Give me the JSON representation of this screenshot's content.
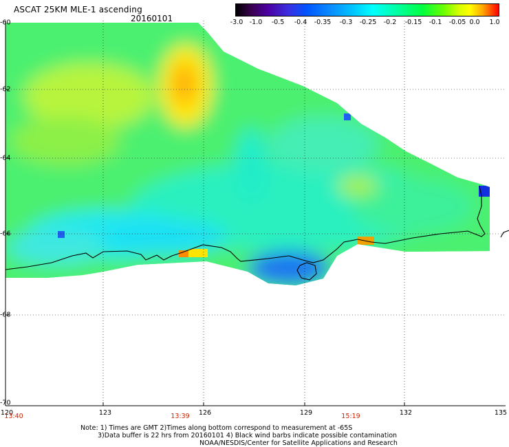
{
  "header": {
    "title": "ASCAT 25KM MLE-1 ascending",
    "date": "20160101"
  },
  "colorbar": {
    "ticks": [
      "-3.0",
      "-1.0",
      "-0.5",
      "-0.4",
      "-0.35",
      "-0.3",
      "-0.25",
      "-0.2",
      "-0.15",
      "-0.1",
      "-0.05",
      "0.0",
      "1.0"
    ]
  },
  "axes": {
    "lat_labels": [
      "-60",
      "-62",
      "-64",
      "-66",
      "-68",
      "-70"
    ],
    "lon_labels": [
      "120",
      "123",
      "126",
      "129",
      "132",
      "135"
    ],
    "time_labels": [
      "13:40",
      "13:39",
      "15:19"
    ]
  },
  "notes": {
    "line1": "Note: 1) Times are GMT 2)Times along bottom correspond to measurement at -65S",
    "line2": "3)Data buffer is 22 hrs from 20160101 4) Black wind barbs indicate possible contamination",
    "line3": "NOAA/NESDIS/Center for Satellite Applications and Research"
  },
  "colors": {
    "land_bg": "#ffffff",
    "coastline": "#000000",
    "time_label": "#cc2200"
  }
}
